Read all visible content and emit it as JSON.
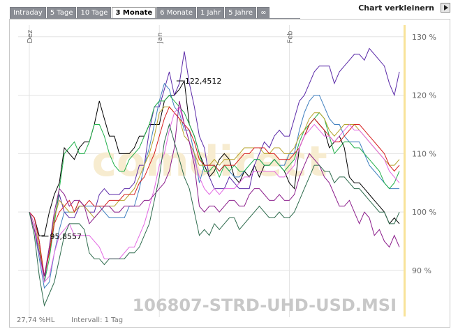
{
  "tabs": [
    {
      "label": "Intraday",
      "active": false
    },
    {
      "label": "5 Tage",
      "active": false
    },
    {
      "label": "10 Tage",
      "active": false
    },
    {
      "label": "3 Monate",
      "active": true
    },
    {
      "label": "6 Monate",
      "active": false
    },
    {
      "label": "1 Jahr",
      "active": false
    },
    {
      "label": "5 Jahre",
      "active": false
    },
    {
      "label": "∞",
      "active": false
    }
  ],
  "shrink_button_label": "Chart verkleinern",
  "watermark": "comdirect",
  "footer": {
    "left": "27,74 %HL",
    "interval": "Intervall: 1 Tag"
  },
  "colors": {
    "grid": "#e3e3e3",
    "axis_highlight": "#f8e39a",
    "label": "#666666",
    "symbol": "#c8c8c8"
  },
  "chart_data": {
    "type": "line",
    "symbol": "106807-STRD-UHD-USD.MSI",
    "x_tick_labels": [
      {
        "label": "Dez",
        "x": 0
      },
      {
        "label": "Jan",
        "x": 26
      },
      {
        "label": "Feb",
        "x": 52
      }
    ],
    "y_unit": "%",
    "ylim": [
      82,
      132
    ],
    "xlim": [
      0,
      74
    ],
    "y_ticks": [
      90,
      100,
      110,
      120,
      130
    ],
    "y_tick_labels": [
      "90 %",
      "100 %",
      "110 %",
      "120 %",
      "130 %"
    ],
    "annotations": [
      {
        "text": "95,8557",
        "x": 3,
        "y": 95.86
      },
      {
        "text": "122,4512",
        "x": 30,
        "y": 122.45
      }
    ],
    "series": [
      {
        "color": "#000000",
        "values": [
          100,
          99,
          95.9,
          96,
          100,
          103,
          105,
          111,
          110,
          109,
          111,
          112,
          112,
          115,
          119,
          116,
          113,
          113,
          110,
          110,
          110,
          111,
          113,
          113,
          115,
          115,
          115,
          119,
          120,
          120,
          121,
          122.45,
          115,
          113,
          110,
          108,
          106,
          107,
          109,
          110,
          109,
          106,
          105,
          107,
          106,
          108,
          106,
          108,
          108,
          109,
          108,
          107,
          105,
          104,
          111,
          113,
          115,
          116,
          115,
          114,
          111,
          112,
          113,
          111,
          106,
          105,
          105,
          104,
          103,
          102,
          101,
          100,
          98,
          99,
          98
        ]
      },
      {
        "color": "#5b2aa8",
        "values": [
          100,
          99,
          95,
          88,
          94,
          99,
          103,
          100,
          99,
          99,
          101,
          101,
          100,
          100,
          103,
          104,
          103,
          103,
          103,
          104,
          104,
          105,
          108,
          108,
          114,
          118,
          118,
          121,
          124,
          120,
          122,
          127.5,
          122,
          118,
          113,
          111,
          106,
          104,
          104,
          104,
          106,
          105,
          104,
          104,
          104,
          108,
          110,
          112,
          111,
          113,
          114,
          113,
          113,
          116,
          119,
          120,
          122,
          124,
          125,
          125,
          125,
          122,
          124,
          125,
          126,
          127,
          127,
          126,
          128,
          127,
          126,
          125,
          122,
          120,
          124
        ]
      },
      {
        "color": "#3f7fbf",
        "values": [
          100,
          97,
          92,
          87,
          88,
          93,
          97,
          100,
          100,
          100,
          102,
          101,
          101,
          101,
          101,
          100,
          99,
          99,
          99,
          99,
          101,
          101,
          104,
          108,
          111,
          115,
          119,
          122,
          121,
          118,
          117,
          114,
          114,
          110,
          105,
          108,
          108,
          108,
          107,
          108,
          107,
          106,
          106,
          107,
          108,
          109,
          109,
          108,
          108,
          109,
          108,
          108,
          110,
          110,
          114,
          117,
          119,
          120,
          120,
          118,
          116,
          115,
          115,
          113,
          112,
          112,
          112,
          110,
          108,
          107,
          106,
          105,
          104,
          104,
          104
        ]
      },
      {
        "color": "#22b04b",
        "values": [
          100,
          98,
          94,
          88,
          92,
          98,
          104,
          110,
          111,
          112,
          110,
          110,
          112,
          115,
          115,
          113,
          110,
          108,
          107,
          107,
          109,
          110,
          111,
          113,
          115,
          118,
          119,
          119,
          120,
          119,
          118,
          117,
          115,
          113,
          110,
          107,
          107,
          108,
          106,
          108,
          107,
          108,
          107,
          107,
          108,
          109,
          109,
          108,
          108,
          109,
          108,
          107,
          108,
          109,
          112,
          114,
          115,
          116,
          117,
          116,
          113,
          110,
          111,
          112,
          112,
          111,
          111,
          110,
          109,
          108,
          107,
          105,
          104,
          105,
          107
        ]
      },
      {
        "color": "#b5a22a",
        "values": [
          100,
          98,
          94,
          89,
          93,
          99,
          102,
          101,
          100,
          100,
          101,
          101,
          100,
          99,
          100,
          101,
          101,
          101,
          102,
          102,
          103,
          104,
          106,
          108,
          110,
          113,
          117,
          118,
          118,
          117,
          116,
          113,
          112,
          110,
          108,
          108,
          108,
          109,
          108,
          109,
          109,
          109,
          110,
          111,
          111,
          111,
          111,
          110,
          110,
          111,
          111,
          110,
          110,
          111,
          113,
          114,
          116,
          117,
          117,
          116,
          114,
          113,
          114,
          115,
          115,
          115,
          114,
          113,
          112,
          111,
          110,
          109,
          108,
          108,
          109
        ]
      },
      {
        "color": "#d61e1e",
        "values": [
          100,
          99,
          95,
          89,
          93,
          98,
          100,
          101,
          102,
          100,
          102,
          101,
          102,
          101,
          101,
          101,
          102,
          102,
          102,
          103,
          103,
          103,
          105,
          106,
          108,
          110,
          113,
          116,
          118,
          117,
          116,
          115,
          114,
          112,
          109,
          108,
          108,
          108,
          107,
          108,
          108,
          108,
          109,
          110,
          110,
          111,
          111,
          111,
          110,
          110,
          109,
          109,
          109,
          110,
          111,
          113,
          115,
          116,
          115,
          114,
          113,
          112,
          112,
          113,
          114,
          115,
          115,
          114,
          113,
          112,
          111,
          110,
          108,
          107,
          108
        ]
      },
      {
        "color": "#e368e3",
        "values": [
          100,
          98,
          93,
          88,
          89,
          93,
          96,
          97,
          98,
          96,
          96,
          96,
          96,
          95,
          94,
          92,
          92,
          92,
          92,
          93,
          94,
          94,
          96,
          98,
          101,
          104,
          108,
          110,
          114,
          117,
          118,
          115,
          112,
          109,
          106,
          104,
          103,
          104,
          103,
          104,
          104,
          104,
          105,
          106,
          106,
          107,
          107,
          107,
          107,
          107,
          106,
          106,
          107,
          108,
          111,
          113,
          114,
          115,
          114,
          113,
          113,
          112,
          113,
          114,
          115,
          114,
          114,
          113,
          112,
          111,
          110,
          109,
          107,
          106,
          105
        ]
      },
      {
        "color": "#8b1d8b",
        "values": [
          100,
          97,
          93,
          89,
          94,
          100,
          104,
          103,
          101,
          102,
          102,
          101,
          98,
          99,
          100,
          101,
          101,
          100,
          100,
          101,
          101,
          101,
          101,
          102,
          102,
          103,
          104,
          105,
          107,
          111,
          119,
          115,
          112,
          108,
          101,
          100,
          101,
          101,
          100,
          101,
          102,
          102,
          101,
          101,
          103,
          104,
          104,
          103,
          102,
          102,
          103,
          102,
          102,
          103,
          106,
          108,
          110,
          109,
          108,
          106,
          105,
          103,
          101,
          101,
          102,
          100,
          98,
          100,
          99,
          96,
          97,
          95,
          94,
          96,
          94
        ]
      },
      {
        "color": "#2e6b4d",
        "values": [
          100,
          96,
          89,
          84,
          86,
          88,
          92,
          96,
          98,
          98,
          98,
          97,
          93,
          92,
          92,
          91,
          92,
          92,
          92,
          92,
          93,
          93,
          94,
          96,
          98,
          102,
          106,
          112,
          115,
          112,
          109,
          106,
          104,
          100,
          96,
          97,
          96,
          98,
          97,
          98,
          99,
          99,
          97,
          98,
          99,
          100,
          101,
          100,
          99,
          99,
          100,
          99,
          99,
          100,
          102,
          104,
          106,
          108,
          108,
          107,
          107,
          105,
          106,
          106,
          105,
          104,
          104,
          103,
          102,
          101,
          100,
          100,
          98,
          98,
          100
        ]
      }
    ]
  }
}
